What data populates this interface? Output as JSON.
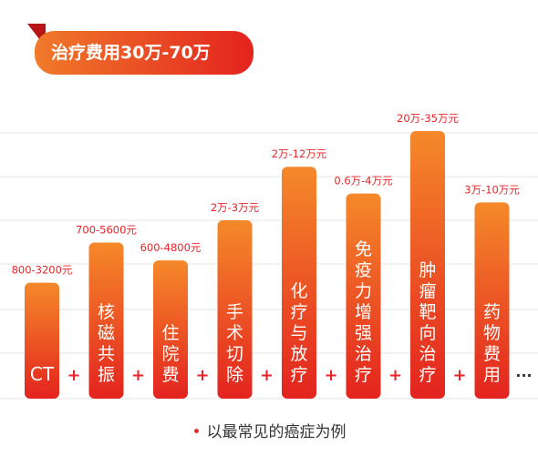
{
  "header": {
    "title": "治疗费用30万-70万"
  },
  "chart_data": {
    "type": "bar",
    "categories": [
      "CT",
      "核磁共振",
      "住院费",
      "手术切除",
      "化疗与放疗",
      "免疫力增强治疗",
      "肿瘤靶向治疗",
      "药物费用"
    ],
    "bar_labels": [
      "CT",
      "核\n磁\n共\n振",
      "住\n院\n费",
      "手\n术\n切\n除",
      "化\n疗\n与\n放\n疗",
      "免\n疫\n力\n增\n强\n治\n疗",
      "肿\n瘤\n靶\n向\n治\n疗",
      "药\n物\n费\n用"
    ],
    "value_labels": [
      "800-3200元",
      "700-5600元",
      "600-4800元",
      "2万-3万元",
      "2万-12万元",
      "0.6万-4万元",
      "20万-35万元",
      "3万-10万元"
    ],
    "relative_height": [
      1.3,
      1.75,
      1.55,
      2.0,
      2.6,
      2.3,
      3.0,
      2.2
    ],
    "separator": "+",
    "trailing": "···",
    "grid": true,
    "colors": {
      "bar_top": "#f5892a",
      "bar_bottom": "#e3231f",
      "value_text": "#e8262a",
      "separator": "#e8262a"
    }
  },
  "footer": {
    "bullet": "•",
    "note": "以最常见的癌症为例"
  }
}
